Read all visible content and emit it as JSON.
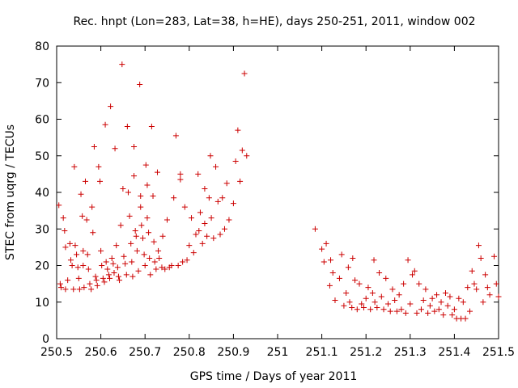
{
  "chart_data": {
    "type": "scatter",
    "title": "Rec. hnpt (Lon=283, Lat=38, h=HE), days 250-251, 2011, window 002",
    "xlabel": "GPS time / Days of year 2011",
    "ylabel": "STEC from uqrg / TECUs",
    "xlim": [
      250.5,
      251.5
    ],
    "ylim": [
      0,
      80
    ],
    "xticks": [
      "250.5",
      "250.6",
      "250.7",
      "250.8",
      "250.9",
      "251",
      "251.1",
      "251.2",
      "251.3",
      "251.4",
      "251.5"
    ],
    "yticks": [
      "0",
      "10",
      "20",
      "30",
      "40",
      "50",
      "60",
      "70",
      "80"
    ],
    "grid": false,
    "marker": "plus",
    "color": "#cc0000",
    "points": [
      [
        250.505,
        36.5
      ],
      [
        250.508,
        15.0
      ],
      [
        250.51,
        14.0
      ],
      [
        250.515,
        33.0
      ],
      [
        250.518,
        29.5
      ],
      [
        250.52,
        25.0
      ],
      [
        250.52,
        13.5
      ],
      [
        250.525,
        16.0
      ],
      [
        250.53,
        26.0
      ],
      [
        250.532,
        21.5
      ],
      [
        250.535,
        20.0
      ],
      [
        250.538,
        13.5
      ],
      [
        250.54,
        47.0
      ],
      [
        250.542,
        25.5
      ],
      [
        250.545,
        23.0
      ],
      [
        250.548,
        19.5
      ],
      [
        250.55,
        16.5
      ],
      [
        250.552,
        13.5
      ],
      [
        250.555,
        39.5
      ],
      [
        250.558,
        33.5
      ],
      [
        250.56,
        24.0
      ],
      [
        250.56,
        20.0
      ],
      [
        250.562,
        14.0
      ],
      [
        250.565,
        43.0
      ],
      [
        250.568,
        32.5
      ],
      [
        250.57,
        23.0
      ],
      [
        250.572,
        19.0
      ],
      [
        250.575,
        15.0
      ],
      [
        250.578,
        13.5
      ],
      [
        250.58,
        36.0
      ],
      [
        250.582,
        29.0
      ],
      [
        250.585,
        52.5
      ],
      [
        250.588,
        17.0
      ],
      [
        250.59,
        16.0
      ],
      [
        250.592,
        14.5
      ],
      [
        250.595,
        47.0
      ],
      [
        250.598,
        43.0
      ],
      [
        250.6,
        24.0
      ],
      [
        250.602,
        20.0
      ],
      [
        250.605,
        16.5
      ],
      [
        250.608,
        15.5
      ],
      [
        250.61,
        58.5
      ],
      [
        250.612,
        21.0
      ],
      [
        250.615,
        19.0
      ],
      [
        250.618,
        17.5
      ],
      [
        250.62,
        16.5
      ],
      [
        250.622,
        63.5
      ],
      [
        250.625,
        22.0
      ],
      [
        250.628,
        20.5
      ],
      [
        250.63,
        18.0
      ],
      [
        250.632,
        52.0
      ],
      [
        250.635,
        25.5
      ],
      [
        250.638,
        19.5
      ],
      [
        250.64,
        17.0
      ],
      [
        250.642,
        16.0
      ],
      [
        250.645,
        31.0
      ],
      [
        250.648,
        75.0
      ],
      [
        250.65,
        41.0
      ],
      [
        250.652,
        22.5
      ],
      [
        250.655,
        20.5
      ],
      [
        250.658,
        17.5
      ],
      [
        250.66,
        58.0
      ],
      [
        250.662,
        40.0
      ],
      [
        250.665,
        33.5
      ],
      [
        250.668,
        26.0
      ],
      [
        250.67,
        21.0
      ],
      [
        250.672,
        17.0
      ],
      [
        250.675,
        52.5
      ],
      [
        250.675,
        44.5
      ],
      [
        250.678,
        29.5
      ],
      [
        250.68,
        28.0
      ],
      [
        250.682,
        24.0
      ],
      [
        250.685,
        18.5
      ],
      [
        250.688,
        69.5
      ],
      [
        250.69,
        39.0
      ],
      [
        250.69,
        36.0
      ],
      [
        250.692,
        31.0
      ],
      [
        250.695,
        27.5
      ],
      [
        250.698,
        23.0
      ],
      [
        250.7,
        20.0
      ],
      [
        250.702,
        47.5
      ],
      [
        250.705,
        42.0
      ],
      [
        250.705,
        33.0
      ],
      [
        250.708,
        29.0
      ],
      [
        250.71,
        22.0
      ],
      [
        250.712,
        17.5
      ],
      [
        250.715,
        58.0
      ],
      [
        250.718,
        39.0
      ],
      [
        250.72,
        26.5
      ],
      [
        250.722,
        21.0
      ],
      [
        250.725,
        19.0
      ],
      [
        250.728,
        45.5
      ],
      [
        250.73,
        24.0
      ],
      [
        250.732,
        22.0
      ],
      [
        250.738,
        19.5
      ],
      [
        250.74,
        28.0
      ],
      [
        250.745,
        19.0
      ],
      [
        250.75,
        32.5
      ],
      [
        250.755,
        19.5
      ],
      [
        250.76,
        20.0
      ],
      [
        250.765,
        38.5
      ],
      [
        250.77,
        55.5
      ],
      [
        250.775,
        20.0
      ],
      [
        250.78,
        43.5
      ],
      [
        250.78,
        45.0
      ],
      [
        250.785,
        21.0
      ],
      [
        250.79,
        36.0
      ],
      [
        250.795,
        21.5
      ],
      [
        250.8,
        25.5
      ],
      [
        250.805,
        33.0
      ],
      [
        250.81,
        23.5
      ],
      [
        250.815,
        28.5
      ],
      [
        250.82,
        45.0
      ],
      [
        250.822,
        29.5
      ],
      [
        250.825,
        34.5
      ],
      [
        250.83,
        26.0
      ],
      [
        250.835,
        41.0
      ],
      [
        250.835,
        31.5
      ],
      [
        250.84,
        28.0
      ],
      [
        250.845,
        38.5
      ],
      [
        250.848,
        50.0
      ],
      [
        250.85,
        33.0
      ],
      [
        250.855,
        27.5
      ],
      [
        250.86,
        47.0
      ],
      [
        250.865,
        37.5
      ],
      [
        250.87,
        28.5
      ],
      [
        250.875,
        38.5
      ],
      [
        250.88,
        30.0
      ],
      [
        250.885,
        42.5
      ],
      [
        250.89,
        32.5
      ],
      [
        250.9,
        37.0
      ],
      [
        250.905,
        48.5
      ],
      [
        250.91,
        57.0
      ],
      [
        250.915,
        43.0
      ],
      [
        250.92,
        51.5
      ],
      [
        250.925,
        72.5
      ],
      [
        250.93,
        50.0
      ],
      [
        251.085,
        30.0
      ],
      [
        251.1,
        24.5
      ],
      [
        251.105,
        21.0
      ],
      [
        251.11,
        26.0
      ],
      [
        251.118,
        14.5
      ],
      [
        251.12,
        21.5
      ],
      [
        251.125,
        18.0
      ],
      [
        251.13,
        10.5
      ],
      [
        251.14,
        16.5
      ],
      [
        251.145,
        23.0
      ],
      [
        251.15,
        9.0
      ],
      [
        251.155,
        12.5
      ],
      [
        251.16,
        19.5
      ],
      [
        251.163,
        10.0
      ],
      [
        251.168,
        8.5
      ],
      [
        251.17,
        22.0
      ],
      [
        251.175,
        16.0
      ],
      [
        251.18,
        8.0
      ],
      [
        251.185,
        15.0
      ],
      [
        251.19,
        9.5
      ],
      [
        251.195,
        8.5
      ],
      [
        251.2,
        11.0
      ],
      [
        251.205,
        14.0
      ],
      [
        251.21,
        8.0
      ],
      [
        251.215,
        12.5
      ],
      [
        251.218,
        21.5
      ],
      [
        251.22,
        10.0
      ],
      [
        251.225,
        8.5
      ],
      [
        251.23,
        18.0
      ],
      [
        251.235,
        11.5
      ],
      [
        251.24,
        8.0
      ],
      [
        251.245,
        16.5
      ],
      [
        251.25,
        9.5
      ],
      [
        251.255,
        7.5
      ],
      [
        251.26,
        13.5
      ],
      [
        251.265,
        10.5
      ],
      [
        251.27,
        7.5
      ],
      [
        251.275,
        12.0
      ],
      [
        251.28,
        8.0
      ],
      [
        251.285,
        15.0
      ],
      [
        251.29,
        7.0
      ],
      [
        251.295,
        21.5
      ],
      [
        251.3,
        9.5
      ],
      [
        251.305,
        17.5
      ],
      [
        251.31,
        18.5
      ],
      [
        251.315,
        7.0
      ],
      [
        251.32,
        15.0
      ],
      [
        251.325,
        8.0
      ],
      [
        251.33,
        10.5
      ],
      [
        251.335,
        13.5
      ],
      [
        251.34,
        7.0
      ],
      [
        251.345,
        9.0
      ],
      [
        251.35,
        11.0
      ],
      [
        251.355,
        7.5
      ],
      [
        251.36,
        12.0
      ],
      [
        251.365,
        8.0
      ],
      [
        251.37,
        10.0
      ],
      [
        251.375,
        6.5
      ],
      [
        251.38,
        12.5
      ],
      [
        251.385,
        9.0
      ],
      [
        251.39,
        11.5
      ],
      [
        251.395,
        6.5
      ],
      [
        251.4,
        8.0
      ],
      [
        251.405,
        5.5
      ],
      [
        251.41,
        11.0
      ],
      [
        251.415,
        5.5
      ],
      [
        251.42,
        10.0
      ],
      [
        251.425,
        5.5
      ],
      [
        251.43,
        14.0
      ],
      [
        251.435,
        7.5
      ],
      [
        251.44,
        18.5
      ],
      [
        251.445,
        15.0
      ],
      [
        251.45,
        13.5
      ],
      [
        251.455,
        25.5
      ],
      [
        251.46,
        22.0
      ],
      [
        251.465,
        10.0
      ],
      [
        251.47,
        17.5
      ],
      [
        251.475,
        14.0
      ],
      [
        251.48,
        12.0
      ],
      [
        251.49,
        22.5
      ],
      [
        251.495,
        15.0
      ],
      [
        251.5,
        11.5
      ]
    ]
  }
}
